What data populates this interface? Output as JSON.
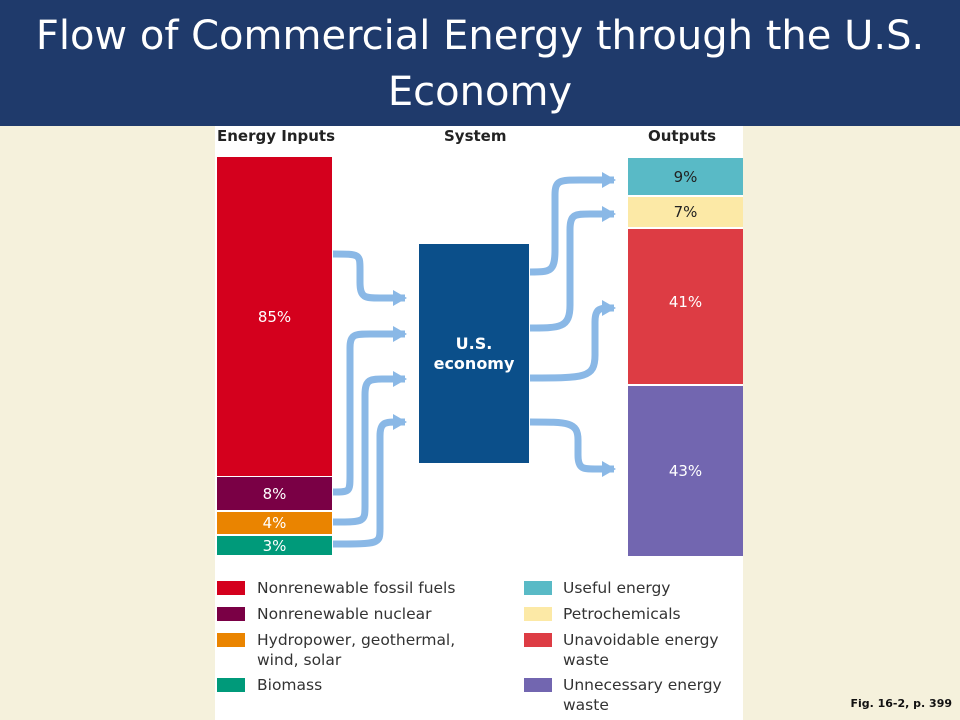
{
  "title": "Flow of Commercial Energy through the U.S. Economy",
  "headers": {
    "inputs": "Energy Inputs",
    "system": "System",
    "outputs": "Outputs"
  },
  "system_label": {
    "line1": "U.S.",
    "line2": "economy"
  },
  "inputs": [
    {
      "label": "85%",
      "value": 85,
      "color": "#d4001d",
      "text_color": "#ffffff"
    },
    {
      "label": "8%",
      "value": 8,
      "color": "#7a0045",
      "text_color": "#ffffff"
    },
    {
      "label": "4%",
      "value": 4,
      "color": "#ea8400",
      "text_color": "#ffffff"
    },
    {
      "label": "3%",
      "value": 3,
      "color": "#009a7a",
      "text_color": "#ffffff"
    }
  ],
  "outputs": [
    {
      "label": "9%",
      "value": 9,
      "color": "#59bac6",
      "text_color": "#222222"
    },
    {
      "label": "7%",
      "value": 7,
      "color": "#fce9a6",
      "text_color": "#222222"
    },
    {
      "label": "41%",
      "value": 41,
      "color": "#dd3c44",
      "text_color": "#ffffff"
    },
    {
      "label": "43%",
      "value": 43,
      "color": "#7266b0",
      "text_color": "#ffffff"
    }
  ],
  "legend": {
    "left": [
      {
        "label": "Nonrenewable fossil fuels",
        "color": "#d4001d"
      },
      {
        "label": "Nonrenewable nuclear",
        "color": "#7a0045"
      },
      {
        "label": "Hydropower, geothermal, wind, solar",
        "color": "#ea8400"
      },
      {
        "label": "Biomass",
        "color": "#009a7a"
      }
    ],
    "right": [
      {
        "label": "Useful energy",
        "color": "#59bac6"
      },
      {
        "label": "Petrochemicals",
        "color": "#fce9a6"
      },
      {
        "label": "Unavoidable energy waste",
        "color": "#dd3c44"
      },
      {
        "label": "Unnecessary energy waste",
        "color": "#7266b0"
      }
    ]
  },
  "arrow_color": "#8ab8e6",
  "caption": "Fig. 16-2, p. 399"
}
